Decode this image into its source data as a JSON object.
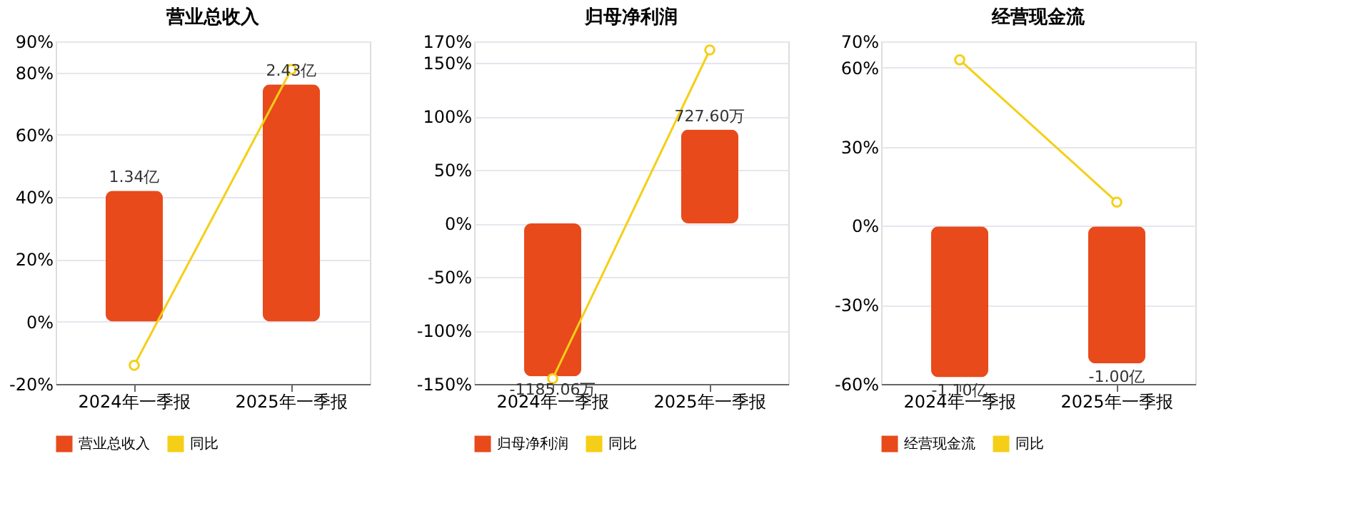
{
  "chart_data": [
    {
      "type": "bar",
      "title": "营业总收入",
      "categories": [
        "2024年一季报",
        "2025年一季报"
      ],
      "series": [
        {
          "name": "营业总收入",
          "axis": "y2",
          "color": "#e84a1b",
          "values": [
            1.34,
            2.43
          ],
          "value_labels": [
            "1.34亿",
            "2.43亿"
          ]
        },
        {
          "name": "同比",
          "type": "line",
          "color": "#f5cf17",
          "marker": "circle",
          "values": [
            -14,
            81
          ]
        }
      ],
      "ylim": [
        -20,
        90
      ],
      "yticks": [
        {
          "value": -20,
          "label": "-20%"
        },
        {
          "value": 0,
          "label": "0%"
        },
        {
          "value": 20,
          "label": "20%"
        },
        {
          "value": 40,
          "label": "40%"
        },
        {
          "value": 60,
          "label": "60%"
        },
        {
          "value": 80,
          "label": "80%"
        },
        {
          "value": 90,
          "label": "90%"
        }
      ],
      "y2lim": [
        -0.64,
        2.87
      ],
      "grid": "y",
      "legend": "bottom"
    },
    {
      "type": "bar",
      "title": "归母净利润",
      "categories": [
        "2024年一季报",
        "2025年一季报"
      ],
      "series": [
        {
          "name": "归母净利润",
          "axis": "y2",
          "color": "#e84a1b",
          "values": [
            -1185.06,
            727.6
          ],
          "value_labels": [
            "-1185.06万",
            "727.60万"
          ]
        },
        {
          "name": "同比",
          "type": "line",
          "color": "#f5cf17",
          "marker": "circle",
          "values": [
            -145,
            162
          ]
        }
      ],
      "ylim": [
        -150,
        170
      ],
      "yticks": [
        {
          "value": -150,
          "label": "-150%"
        },
        {
          "value": -100,
          "label": "-100%"
        },
        {
          "value": -50,
          "label": "-50%"
        },
        {
          "value": 0,
          "label": "0%"
        },
        {
          "value": 50,
          "label": "50%"
        },
        {
          "value": 100,
          "label": "100%"
        },
        {
          "value": 150,
          "label": "150%"
        },
        {
          "value": 170,
          "label": "170%"
        }
      ],
      "y2lim": [
        -1245,
        1411
      ],
      "grid": "y",
      "legend": "bottom"
    },
    {
      "type": "bar",
      "title": "经营现金流",
      "categories": [
        "2024年一季报",
        "2025年一季报"
      ],
      "series": [
        {
          "name": "经营现金流",
          "axis": "y2",
          "color": "#e84a1b",
          "values": [
            -1.1,
            -1.0
          ],
          "value_labels": [
            "-1.10亿",
            "-1.00亿"
          ]
        },
        {
          "name": "同比",
          "type": "line",
          "color": "#f5cf17",
          "marker": "circle",
          "values": [
            63,
            9
          ]
        }
      ],
      "ylim": [
        -60,
        70
      ],
      "yticks": [
        {
          "value": -60,
          "label": "-60%"
        },
        {
          "value": -30,
          "label": "-30%"
        },
        {
          "value": 0,
          "label": "0%"
        },
        {
          "value": 30,
          "label": "30%"
        },
        {
          "value": 60,
          "label": "60%"
        },
        {
          "value": 70,
          "label": "70%"
        }
      ],
      "y2lim": [
        -1.15,
        1.35
      ],
      "grid": "y",
      "legend": "bottom"
    }
  ]
}
